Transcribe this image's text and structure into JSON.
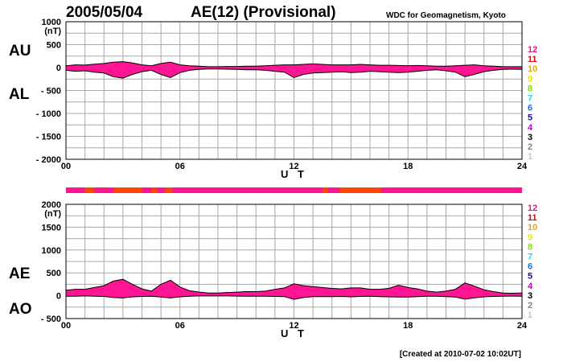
{
  "header": {
    "date": "2005/05/04",
    "title": "AE(12) (Provisional)",
    "organization": "WDC for Geomagnetism, Kyoto"
  },
  "footer": {
    "created": "[Created at 2010-07-02 10:02UT]"
  },
  "colors": {
    "fill_pink": "#ff1493",
    "fill_orange": "#ff4500",
    "envelope": "#000000",
    "grid": "#a8a8a8",
    "station_bar_pink": "#ff1493",
    "station_bar_orange": "#ff4500"
  },
  "station_legend": [
    {
      "label": "12",
      "color": "#e0187f"
    },
    {
      "label": "11",
      "color": "#e00000"
    },
    {
      "label": "10",
      "color": "#f0a000"
    },
    {
      "label": "9",
      "color": "#e8e800"
    },
    {
      "label": "8",
      "color": "#80e000"
    },
    {
      "label": "7",
      "color": "#20d8e0"
    },
    {
      "label": "6",
      "color": "#1a70e0"
    },
    {
      "label": "5",
      "color": "#1010b0"
    },
    {
      "label": "4",
      "color": "#c000c0"
    },
    {
      "label": "3",
      "color": "#000000"
    },
    {
      "label": "2",
      "color": "#808080"
    },
    {
      "label": "1",
      "color": "#c8c8c8"
    }
  ],
  "chart_data": [
    {
      "type": "area",
      "panel": "AU/AL",
      "labels": {
        "upper": "AU",
        "lower": "AL"
      },
      "unit": "(nT)",
      "xlabel": "U T",
      "x_ticks": [
        "00",
        "06",
        "12",
        "18",
        "24"
      ],
      "xlim": [
        0,
        24
      ],
      "ylim": [
        -2000,
        1000
      ],
      "y_ticks": [
        {
          "value": 1000,
          "label": "1000"
        },
        {
          "value": 500,
          "label": "500"
        },
        {
          "value": 0,
          "label": "0"
        },
        {
          "value": -500,
          "label": "- 500"
        },
        {
          "value": -1000,
          "label": "- 1000"
        },
        {
          "value": -1500,
          "label": "- 1500"
        },
        {
          "value": -2000,
          "label": "- 2000"
        }
      ],
      "grid": true,
      "series": [
        {
          "name": "AU",
          "x": [
            0,
            0.5,
            1,
            1.5,
            2,
            2.5,
            3,
            3.5,
            4,
            4.5,
            5,
            5.5,
            6,
            6.5,
            7,
            7.5,
            8,
            8.5,
            9,
            9.5,
            10,
            10.5,
            11,
            11.5,
            12,
            12.5,
            13,
            13.5,
            14,
            14.5,
            15,
            15.5,
            16,
            16.5,
            17,
            17.5,
            18,
            18.5,
            19,
            19.5,
            20,
            20.5,
            21,
            21.5,
            22,
            22.5,
            23,
            23.5,
            24
          ],
          "values": [
            40,
            60,
            55,
            75,
            90,
            120,
            130,
            100,
            60,
            40,
            90,
            120,
            60,
            40,
            30,
            20,
            20,
            25,
            25,
            30,
            30,
            40,
            50,
            60,
            60,
            70,
            80,
            70,
            60,
            60,
            60,
            70,
            60,
            50,
            50,
            45,
            40,
            45,
            40,
            30,
            30,
            40,
            50,
            60,
            40,
            30,
            20,
            20,
            20
          ]
        },
        {
          "name": "AL",
          "x": [
            0,
            0.5,
            1,
            1.5,
            2,
            2.5,
            3,
            3.5,
            4,
            4.5,
            5,
            5.5,
            6,
            6.5,
            7,
            7.5,
            8,
            8.5,
            9,
            9.5,
            10,
            10.5,
            11,
            11.5,
            12,
            12.5,
            13,
            13.5,
            14,
            14.5,
            15,
            15.5,
            16,
            16.5,
            17,
            17.5,
            18,
            18.5,
            19,
            19.5,
            20,
            20.5,
            21,
            21.5,
            22,
            22.5,
            23,
            23.5,
            24
          ],
          "values": [
            -60,
            -80,
            -70,
            -100,
            -120,
            -200,
            -230,
            -150,
            -90,
            -60,
            -150,
            -220,
            -110,
            -60,
            -40,
            -30,
            -30,
            -35,
            -40,
            -50,
            -50,
            -60,
            -80,
            -100,
            -220,
            -150,
            -120,
            -110,
            -100,
            -90,
            -110,
            -100,
            -80,
            -90,
            -100,
            -110,
            -100,
            -80,
            -60,
            -50,
            -70,
            -100,
            -200,
            -150,
            -90,
            -60,
            -40,
            -35,
            -40
          ]
        }
      ]
    },
    {
      "type": "area",
      "panel": "AE/AO",
      "labels": {
        "upper": "AE",
        "lower": "AO"
      },
      "unit": "(nT)",
      "xlabel": "U T",
      "x_ticks": [
        "00",
        "06",
        "12",
        "18",
        "24"
      ],
      "xlim": [
        0,
        24
      ],
      "ylim": [
        -500,
        2000
      ],
      "y_ticks": [
        {
          "value": 2000,
          "label": "2000"
        },
        {
          "value": 1500,
          "label": "1500"
        },
        {
          "value": 1000,
          "label": "1000"
        },
        {
          "value": 500,
          "label": "500"
        },
        {
          "value": 0,
          "label": "0"
        },
        {
          "value": -500,
          "label": "- 500"
        }
      ],
      "grid": true,
      "series": [
        {
          "name": "AE",
          "x": [
            0,
            0.5,
            1,
            1.5,
            2,
            2.5,
            3,
            3.5,
            4,
            4.5,
            5,
            5.5,
            6,
            6.5,
            7,
            7.5,
            8,
            8.5,
            9,
            9.5,
            10,
            10.5,
            11,
            11.5,
            12,
            12.5,
            13,
            13.5,
            14,
            14.5,
            15,
            15.5,
            16,
            16.5,
            17,
            17.5,
            18,
            18.5,
            19,
            19.5,
            20,
            20.5,
            21,
            21.5,
            22,
            22.5,
            23,
            23.5,
            24
          ],
          "values": [
            120,
            140,
            140,
            180,
            220,
            320,
            360,
            250,
            150,
            100,
            250,
            340,
            190,
            110,
            80,
            60,
            60,
            70,
            80,
            90,
            90,
            100,
            140,
            170,
            260,
            220,
            200,
            180,
            160,
            150,
            170,
            170,
            140,
            140,
            160,
            230,
            180,
            150,
            100,
            80,
            100,
            140,
            280,
            210,
            130,
            90,
            60,
            55,
            60
          ]
        },
        {
          "name": "AO",
          "x": [
            0,
            0.5,
            1,
            1.5,
            2,
            2.5,
            3,
            3.5,
            4,
            4.5,
            5,
            5.5,
            6,
            6.5,
            7,
            7.5,
            8,
            8.5,
            9,
            9.5,
            10,
            10.5,
            11,
            11.5,
            12,
            12.5,
            13,
            13.5,
            14,
            14.5,
            15,
            15.5,
            16,
            16.5,
            17,
            17.5,
            18,
            18.5,
            19,
            19.5,
            20,
            20.5,
            21,
            21.5,
            22,
            22.5,
            23,
            23.5,
            24
          ],
          "values": [
            -10,
            -10,
            -5,
            -10,
            -15,
            -40,
            -50,
            -25,
            -15,
            -10,
            -30,
            -50,
            -25,
            -10,
            -5,
            -5,
            -5,
            -5,
            -8,
            -10,
            -10,
            -10,
            -15,
            -20,
            -80,
            -40,
            -20,
            -20,
            -20,
            -15,
            -25,
            -15,
            -10,
            -20,
            -25,
            -30,
            -30,
            -20,
            -10,
            -10,
            -20,
            -30,
            -75,
            -45,
            -25,
            -15,
            -10,
            -8,
            -10
          ]
        }
      ]
    }
  ]
}
